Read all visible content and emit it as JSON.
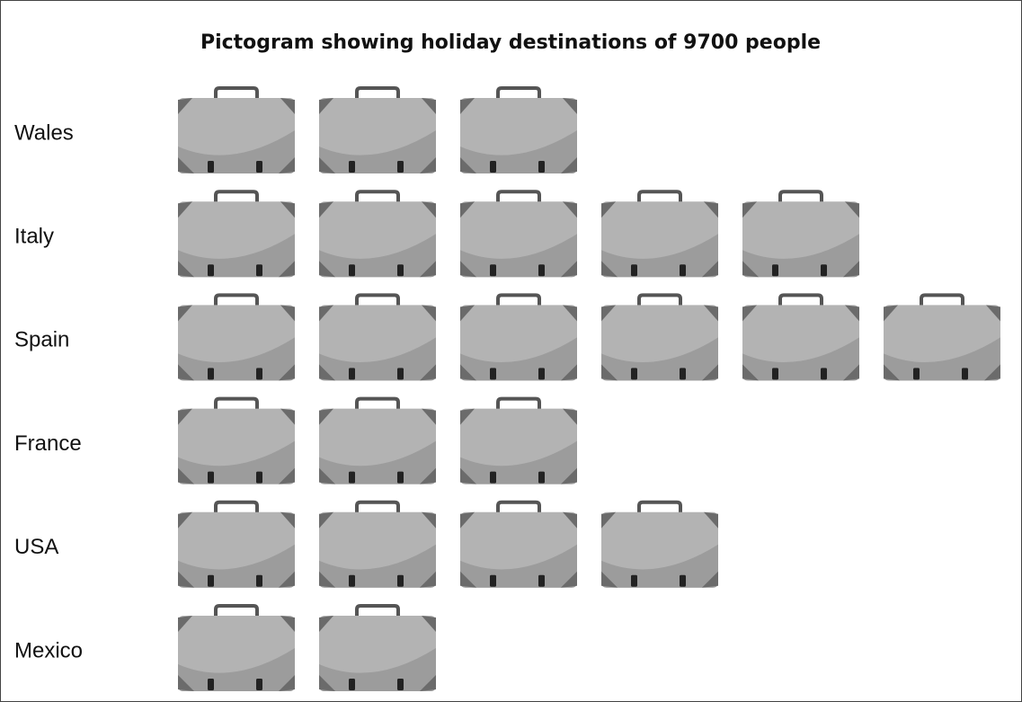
{
  "chart_data": {
    "type": "pictogram",
    "title": "Pictogram showing holiday destinations of 9700 people",
    "categories": [
      "Wales",
      "Italy",
      "Spain",
      "France",
      "USA",
      "Mexico"
    ],
    "values": [
      3.5,
      5.25,
      6,
      3.5,
      4,
      2
    ]
  }
}
